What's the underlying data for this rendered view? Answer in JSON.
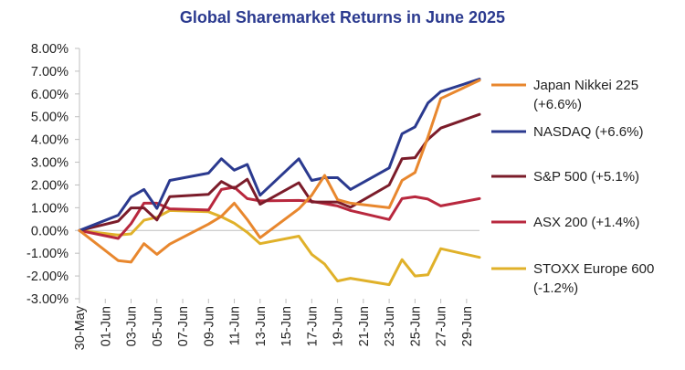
{
  "chart_data": {
    "type": "line",
    "title": "Global Sharemarket Returns in June 2025",
    "xlabel": "",
    "ylabel": "",
    "ylim": [
      -0.03,
      0.08
    ],
    "y_tick_step": 0.01,
    "y_format": "percent",
    "grid": false,
    "legend_position": "right",
    "x": [
      "30-May",
      "02-Jun",
      "03-Jun",
      "04-Jun",
      "05-Jun",
      "06-Jun",
      "09-Jun",
      "10-Jun",
      "11-Jun",
      "12-Jun",
      "13-Jun",
      "16-Jun",
      "17-Jun",
      "18-Jun",
      "19-Jun",
      "20-Jun",
      "23-Jun",
      "24-Jun",
      "25-Jun",
      "26-Jun",
      "27-Jun",
      "30-Jun"
    ],
    "x_tick_labels": [
      "30-May",
      "01-Jun",
      "03-Jun",
      "05-Jun",
      "07-Jun",
      "09-Jun",
      "11-Jun",
      "13-Jun",
      "15-Jun",
      "17-Jun",
      "19-Jun",
      "21-Jun",
      "23-Jun",
      "25-Jun",
      "27-Jun",
      "29-Jun"
    ],
    "series": [
      {
        "name": "Japan Nikkei 225",
        "legend_line2": "(+6.6%)",
        "color": "#e8872e",
        "points": [
          [
            "30-May",
            0.0
          ],
          [
            "02-Jun",
            -0.0132
          ],
          [
            "03-Jun",
            -0.0139
          ],
          [
            "04-Jun",
            -0.0058
          ],
          [
            "05-Jun",
            -0.0105
          ],
          [
            "06-Jun",
            -0.006
          ],
          [
            "09-Jun",
            0.0028
          ],
          [
            "10-Jun",
            0.0062
          ],
          [
            "11-Jun",
            0.012
          ],
          [
            "12-Jun",
            0.0048
          ],
          [
            "13-Jun",
            -0.0032
          ],
          [
            "16-Jun",
            0.0095
          ],
          [
            "17-Jun",
            0.0155
          ],
          [
            "18-Jun",
            0.0242
          ],
          [
            "19-Jun",
            0.0135
          ],
          [
            "20-Jun",
            0.012
          ],
          [
            "23-Jun",
            0.01
          ],
          [
            "24-Jun",
            0.022
          ],
          [
            "25-Jun",
            0.0255
          ],
          [
            "26-Jun",
            0.041
          ],
          [
            "27-Jun",
            0.058
          ],
          [
            "30-Jun",
            0.066
          ]
        ]
      },
      {
        "name": "NASDAQ (+6.6%)",
        "legend_line2": "",
        "color": "#2b3a8f",
        "points": [
          [
            "30-May",
            0.0
          ],
          [
            "02-Jun",
            0.0067
          ],
          [
            "03-Jun",
            0.0148
          ],
          [
            "04-Jun",
            0.018
          ],
          [
            "05-Jun",
            0.0097
          ],
          [
            "06-Jun",
            0.022
          ],
          [
            "09-Jun",
            0.0252
          ],
          [
            "10-Jun",
            0.0315
          ],
          [
            "11-Jun",
            0.0265
          ],
          [
            "12-Jun",
            0.029
          ],
          [
            "13-Jun",
            0.0155
          ],
          [
            "16-Jun",
            0.0315
          ],
          [
            "17-Jun",
            0.022
          ],
          [
            "18-Jun",
            0.0232
          ],
          [
            "19-Jun",
            0.0232
          ],
          [
            "20-Jun",
            0.018
          ],
          [
            "23-Jun",
            0.0275
          ],
          [
            "24-Jun",
            0.0425
          ],
          [
            "25-Jun",
            0.0455
          ],
          [
            "26-Jun",
            0.056
          ],
          [
            "27-Jun",
            0.061
          ],
          [
            "30-Jun",
            0.0665
          ]
        ]
      },
      {
        "name": "S&P 500 (+5.1%)",
        "legend_line2": "",
        "color": "#7b1c2a",
        "points": [
          [
            "30-May",
            0.0
          ],
          [
            "02-Jun",
            0.0041
          ],
          [
            "03-Jun",
            0.0099
          ],
          [
            "04-Jun",
            0.0099
          ],
          [
            "05-Jun",
            0.0046
          ],
          [
            "06-Jun",
            0.0149
          ],
          [
            "09-Jun",
            0.0159
          ],
          [
            "10-Jun",
            0.0215
          ],
          [
            "11-Jun",
            0.0185
          ],
          [
            "12-Jun",
            0.0225
          ],
          [
            "13-Jun",
            0.0115
          ],
          [
            "16-Jun",
            0.021
          ],
          [
            "17-Jun",
            0.0125
          ],
          [
            "18-Jun",
            0.0125
          ],
          [
            "19-Jun",
            0.0125
          ],
          [
            "20-Jun",
            0.0102
          ],
          [
            "23-Jun",
            0.02
          ],
          [
            "24-Jun",
            0.0315
          ],
          [
            "25-Jun",
            0.032
          ],
          [
            "26-Jun",
            0.04
          ],
          [
            "27-Jun",
            0.045
          ],
          [
            "30-Jun",
            0.051
          ]
        ]
      },
      {
        "name": "ASX 200 (+1.4%)",
        "legend_line2": "",
        "color": "#b8283e",
        "points": [
          [
            "30-May",
            0.0
          ],
          [
            "02-Jun",
            -0.0035
          ],
          [
            "03-Jun",
            0.003
          ],
          [
            "04-Jun",
            0.012
          ],
          [
            "05-Jun",
            0.012
          ],
          [
            "06-Jun",
            0.0095
          ],
          [
            "09-Jun",
            0.009
          ],
          [
            "10-Jun",
            0.018
          ],
          [
            "11-Jun",
            0.019
          ],
          [
            "12-Jun",
            0.014
          ],
          [
            "13-Jun",
            0.013
          ],
          [
            "16-Jun",
            0.0132
          ],
          [
            "17-Jun",
            0.0128
          ],
          [
            "18-Jun",
            0.0118
          ],
          [
            "19-Jun",
            0.0108
          ],
          [
            "20-Jun",
            0.0088
          ],
          [
            "23-Jun",
            0.0048
          ],
          [
            "24-Jun",
            0.014
          ],
          [
            "25-Jun",
            0.0148
          ],
          [
            "26-Jun",
            0.0138
          ],
          [
            "27-Jun",
            0.0108
          ],
          [
            "30-Jun",
            0.014
          ]
        ]
      },
      {
        "name": "STOXX Europe 600",
        "legend_line2": "(-1.2%)",
        "color": "#e0b12a",
        "points": [
          [
            "30-May",
            0.0
          ],
          [
            "02-Jun",
            -0.002
          ],
          [
            "03-Jun",
            -0.0015
          ],
          [
            "04-Jun",
            0.0045
          ],
          [
            "05-Jun",
            0.0058
          ],
          [
            "06-Jun",
            0.0088
          ],
          [
            "09-Jun",
            0.0082
          ],
          [
            "10-Jun",
            0.006
          ],
          [
            "11-Jun",
            0.0032
          ],
          [
            "12-Jun",
            -0.0008
          ],
          [
            "13-Jun",
            -0.0058
          ],
          [
            "16-Jun",
            -0.0025
          ],
          [
            "17-Jun",
            -0.0105
          ],
          [
            "18-Jun",
            -0.0148
          ],
          [
            "19-Jun",
            -0.0222
          ],
          [
            "20-Jun",
            -0.021
          ],
          [
            "23-Jun",
            -0.0238
          ],
          [
            "24-Jun",
            -0.0128
          ],
          [
            "25-Jun",
            -0.02
          ],
          [
            "26-Jun",
            -0.0195
          ],
          [
            "27-Jun",
            -0.008
          ],
          [
            "30-Jun",
            -0.0118
          ]
        ]
      }
    ]
  }
}
